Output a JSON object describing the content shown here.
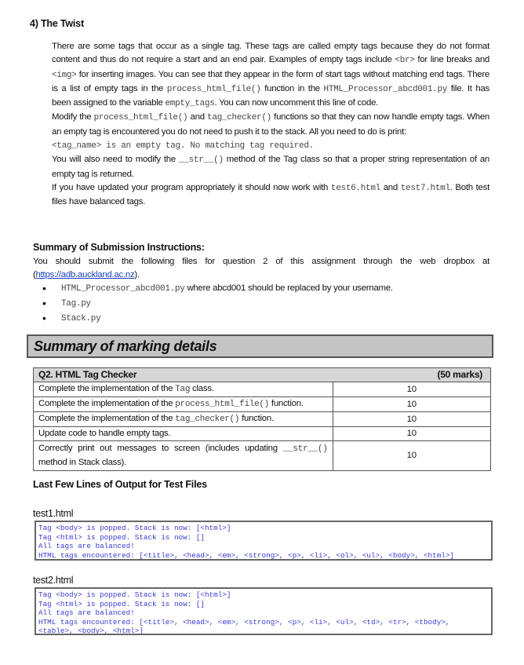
{
  "section": {
    "title": "4) The Twist",
    "paragraphs": [
      [
        {
          "t": "text",
          "v": "There are some tags that occur as a single tag. These tags are called empty tags because they do not format content and thus do not require a start and an end pair. Examples of empty tags include "
        },
        {
          "t": "code",
          "v": "<br>"
        },
        {
          "t": "text",
          "v": " for line breaks and "
        },
        {
          "t": "code",
          "v": "<img>"
        },
        {
          "t": "text",
          "v": " for inserting images. You can see that they appear in the form of start tags without matching end tags. There is a list of empty tags in the "
        },
        {
          "t": "code",
          "v": "process_html_file()"
        },
        {
          "t": "text",
          "v": " function in the "
        },
        {
          "t": "code",
          "v": "HTML_Processor_abcd001.py"
        },
        {
          "t": "text",
          "v": " file. It has been assigned to the variable "
        },
        {
          "t": "code",
          "v": "empty_tags"
        },
        {
          "t": "text",
          "v": ". You can now uncomment this line of code."
        }
      ],
      [
        {
          "t": "text",
          "v": "Modify the "
        },
        {
          "t": "code",
          "v": "process_html_file()"
        },
        {
          "t": "text",
          "v": " and "
        },
        {
          "t": "code",
          "v": "tag_checker()"
        },
        {
          "t": "text",
          "v": " functions so that they can now handle empty tags. When an empty tag is encountered you do not need to push it to the stack. All you need to do is print:"
        }
      ],
      [
        {
          "t": "code",
          "v": "<tag_name> is an empty tag. No matching tag required."
        }
      ],
      [
        {
          "t": "text",
          "v": "You will also need to modify the "
        },
        {
          "t": "code",
          "v": "__str__()"
        },
        {
          "t": "text",
          "v": " method of the Tag class so that a proper string representation of an empty tag is returned."
        }
      ],
      [
        {
          "t": "text",
          "v": "If you have updated your program appropriately it should now work with "
        },
        {
          "t": "code",
          "v": "test6.html"
        },
        {
          "t": "text",
          "v": " and "
        },
        {
          "t": "code",
          "v": "test7.html"
        },
        {
          "t": "text",
          "v": ". Both test files have balanced tags."
        }
      ]
    ]
  },
  "submission": {
    "title": "Summary of Submission Instructions:",
    "intro": "You should submit the following files for question 2 of this assignment through the web dropbox at",
    "link_open": "(",
    "link": "https://adb.auckland.ac.nz",
    "link_close": ").",
    "files": [
      {
        "code": "HTML_Processor_abcd001.py",
        "note": " where abcd001 should be replaced by your username."
      },
      {
        "code": "Tag.py",
        "note": ""
      },
      {
        "code": "Stack.py",
        "note": ""
      }
    ]
  },
  "marking": {
    "title": "Summary of marking details",
    "header": {
      "task": "Q2. HTML Tag Checker",
      "marks": "(50 marks)"
    },
    "rows": [
      {
        "segments": [
          {
            "t": "text",
            "v": "Complete the implementation of the "
          },
          {
            "t": "code",
            "v": "Tag"
          },
          {
            "t": "text",
            "v": " class."
          }
        ],
        "marks": "10"
      },
      {
        "segments": [
          {
            "t": "text",
            "v": "Complete the implementation of the "
          },
          {
            "t": "code",
            "v": "process_html_file()"
          },
          {
            "t": "text",
            "v": " function."
          }
        ],
        "marks": "10"
      },
      {
        "segments": [
          {
            "t": "text",
            "v": "Complete the implementation of the "
          },
          {
            "t": "code",
            "v": "tag_checker()"
          },
          {
            "t": "text",
            "v": " function."
          }
        ],
        "marks": "10"
      },
      {
        "segments": [
          {
            "t": "text",
            "v": "Update code to handle empty tags."
          }
        ],
        "marks": "10"
      },
      {
        "segments": [
          {
            "t": "text",
            "v": "Correctly print out messages to screen (includes updating "
          },
          {
            "t": "code",
            "v": "__str__()"
          },
          {
            "t": "text",
            "v": " method in Stack class)."
          }
        ],
        "marks": "10"
      }
    ]
  },
  "output": {
    "title": "Last Few Lines of Output for Test Files",
    "tests": [
      {
        "label": "test1.html",
        "lines": [
          "Tag <body> is popped. Stack is now: [<html>]",
          "Tag <html> is popped. Stack is now: []",
          "All tags are balanced!",
          "HTML tags encountered: [<title>, <head>, <em>, <strong>, <p>, <li>, <ol>, <ul>, <body>, <html>]"
        ]
      },
      {
        "label": "test2.html",
        "lines": [
          "Tag <body> is popped. Stack is now: [<html>]",
          "Tag <html> is popped. Stack is now: []",
          "All tags are balanced!",
          "HTML tags encountered: [<title>, <head>, <em>, <strong>, <p>, <li>, <ul>, <td>, <tr>, <tbody>,",
          "<table>, <body>, <html>]"
        ]
      }
    ]
  },
  "colors": {
    "output_text": "#3b3bd0",
    "marking_banner": "#c4c4c4",
    "link": "#1a3fc0"
  }
}
